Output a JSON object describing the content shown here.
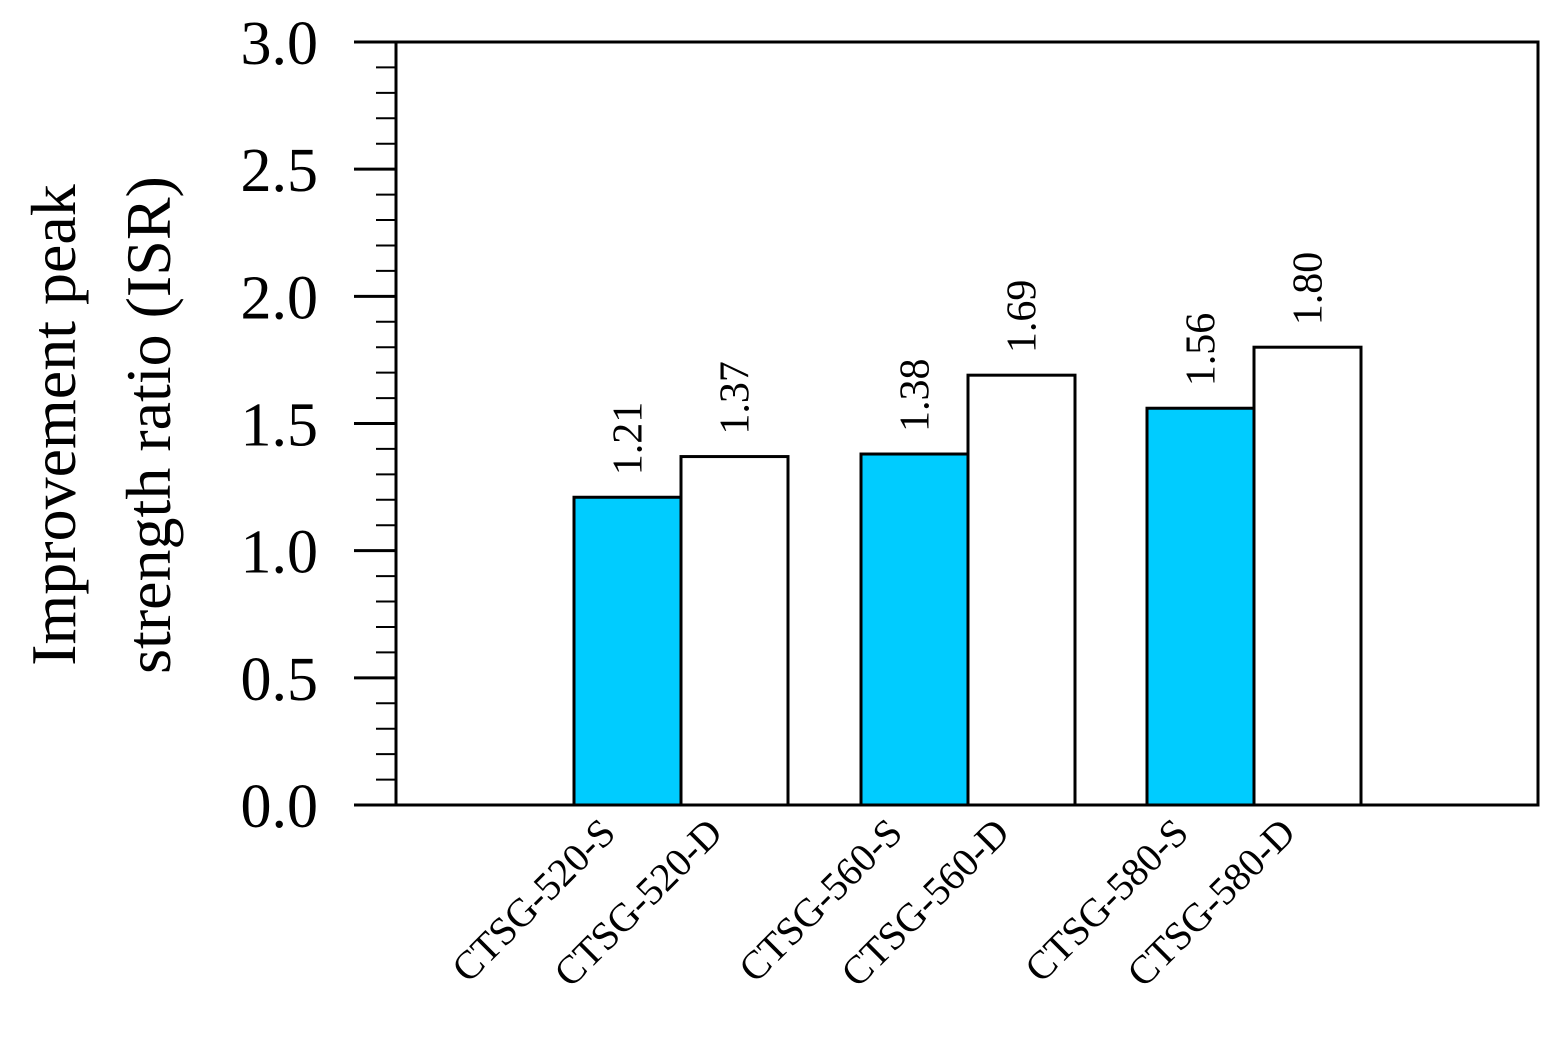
{
  "chart_data": {
    "type": "bar",
    "title": "",
    "xlabel": "",
    "ylabel_lines": [
      "Improvement peak",
      "strength ratio (ISR)"
    ],
    "categories": [
      "CTSG-520-S",
      "CTSG-520-D",
      "CTSG-560-S",
      "CTSG-560-D",
      "CTSG-580-S",
      "CTSG-580-D"
    ],
    "values": [
      1.21,
      1.37,
      1.38,
      1.69,
      1.56,
      1.8
    ],
    "value_labels": [
      "1.21",
      "1.37",
      "1.38",
      "1.69",
      "1.56",
      "1.80"
    ],
    "bar_colors": [
      "#00ccff",
      "#ffffff",
      "#00ccff",
      "#ffffff",
      "#00ccff",
      "#ffffff"
    ],
    "ylim": [
      0,
      3.0
    ],
    "yticks": [
      "0.0",
      "0.5",
      "1.0",
      "1.5",
      "2.0",
      "2.5",
      "3.0"
    ],
    "minor_tick_step": 0.1,
    "grid": false,
    "legend": "none"
  }
}
